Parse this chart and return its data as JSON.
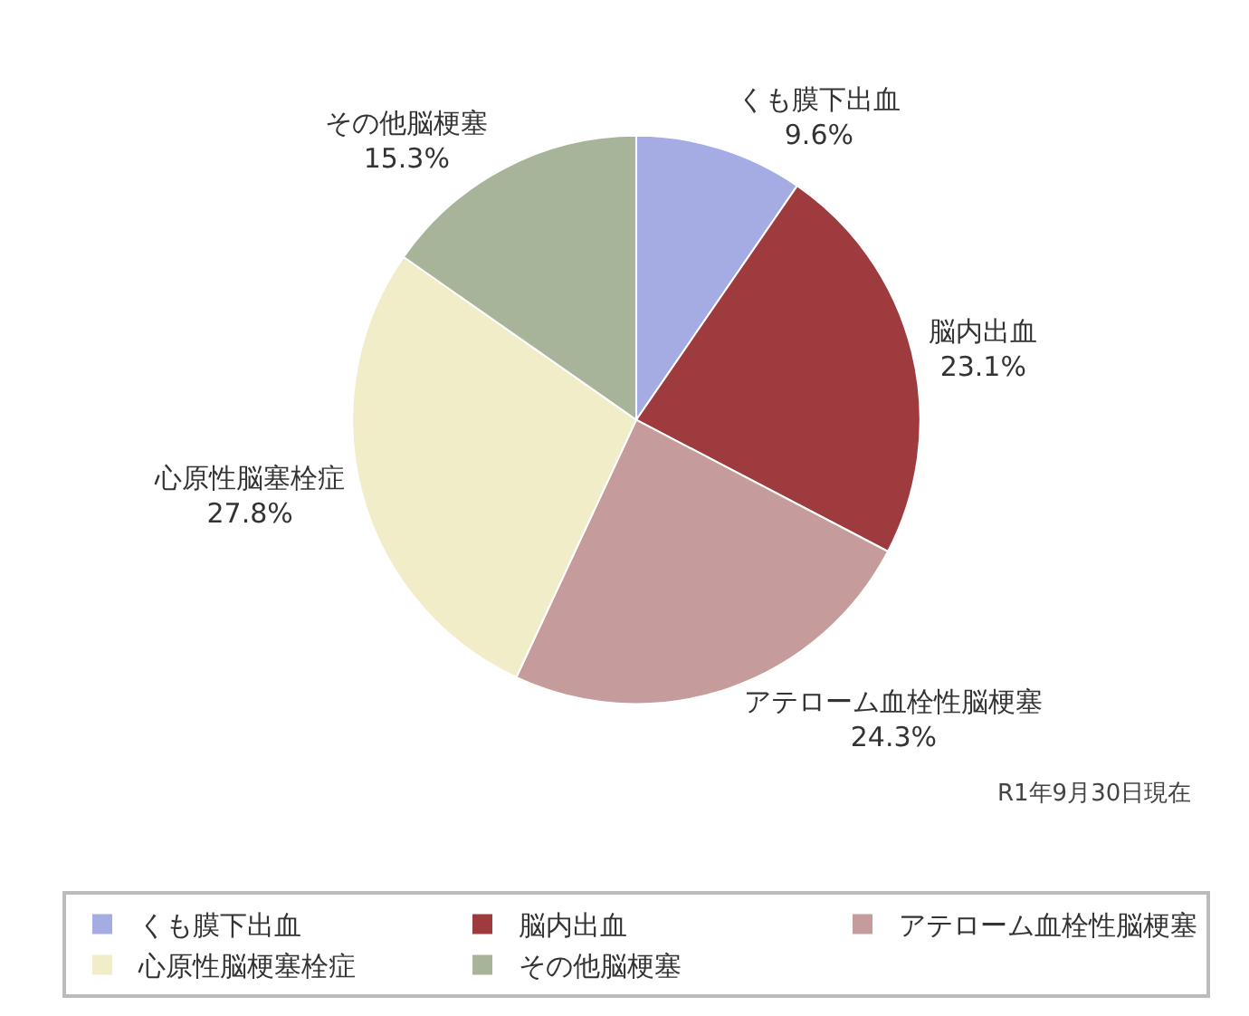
{
  "chart_data": {
    "type": "pie",
    "categories": [
      "くも膜下出血",
      "脳内出血",
      "アテローム血栓性脳梗塞",
      "心原性脳梗塞栓症",
      "その他脳梗塞"
    ],
    "values": [
      9.6,
      23.1,
      24.3,
      27.8,
      15.3
    ],
    "value_labels": [
      "くも膜下出血\n9.6%",
      "脳内出血\n23.1%",
      "アテローム血栓性脳梗塞\n24.3%",
      "心原性脳塞栓症\n27.8%",
      "その他脳梗塞\n15.3%"
    ],
    "colors": [
      "#a5abe3",
      "#9e3b3e",
      "#c69b9b",
      "#f2edc9",
      "#a8b499"
    ],
    "annotations": [
      "R1年9月30日現在"
    ],
    "legend": "bottom"
  }
}
